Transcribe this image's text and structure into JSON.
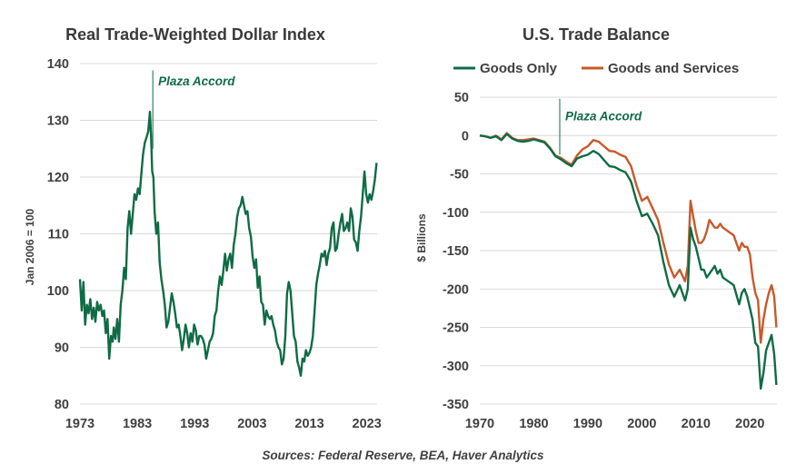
{
  "colors": {
    "green": "#0f6b45",
    "orange": "#c9582a",
    "grid": "#d9d9d9",
    "text": "#404040"
  },
  "source": "Sources: Federal Reserve, BEA, Haver Analytics",
  "chart_data": [
    {
      "type": "line",
      "title": "Real Trade-Weighted  Dollar  Index",
      "xlabel": "",
      "ylabel": "Jan 2006 = 100",
      "xlim": [
        1973,
        2024.8
      ],
      "ylim": [
        80,
        140
      ],
      "xticks": [
        1973,
        1983,
        1993,
        2003,
        2013,
        2023
      ],
      "yticks": [
        80,
        90,
        100,
        110,
        120,
        130,
        140
      ],
      "annotation": {
        "text": "Plaza Accord",
        "x": 1985.7
      },
      "series": [
        {
          "name": "Real Trade-Weighted Dollar Index",
          "color": "#0f6b45",
          "x": [
            1973.0,
            1973.3,
            1973.6,
            1973.9,
            1974.2,
            1974.5,
            1974.8,
            1975.1,
            1975.4,
            1975.7,
            1976.0,
            1976.3,
            1976.6,
            1976.9,
            1977.2,
            1977.5,
            1977.8,
            1978.1,
            1978.4,
            1978.7,
            1978.9,
            1979.2,
            1979.5,
            1979.8,
            1980.1,
            1980.4,
            1980.7,
            1981.0,
            1981.3,
            1981.6,
            1981.9,
            1982.2,
            1982.5,
            1982.8,
            1983.1,
            1983.4,
            1983.7,
            1984.0,
            1984.3,
            1984.6,
            1984.9,
            1985.2,
            1985.4,
            1985.6,
            1985.8,
            1986.0,
            1986.3,
            1986.6,
            1986.9,
            1987.2,
            1987.5,
            1987.8,
            1988.1,
            1988.4,
            1988.7,
            1989.0,
            1989.3,
            1989.6,
            1989.9,
            1990.2,
            1990.5,
            1990.8,
            1991.1,
            1991.4,
            1991.7,
            1992.0,
            1992.3,
            1992.6,
            1992.9,
            1993.2,
            1993.5,
            1993.8,
            1994.1,
            1994.4,
            1994.7,
            1995.0,
            1995.3,
            1995.6,
            1995.9,
            1996.2,
            1996.5,
            1996.8,
            1997.1,
            1997.4,
            1997.7,
            1998.0,
            1998.3,
            1998.6,
            1998.9,
            1999.2,
            1999.5,
            1999.8,
            2000.1,
            2000.4,
            2000.7,
            2001.0,
            2001.3,
            2001.6,
            2001.9,
            2002.2,
            2002.5,
            2002.8,
            2003.1,
            2003.4,
            2003.7,
            2004.0,
            2004.3,
            2004.6,
            2004.9,
            2005.2,
            2005.5,
            2005.8,
            2006.1,
            2006.4,
            2006.7,
            2007.0,
            2007.3,
            2007.6,
            2007.9,
            2008.2,
            2008.5,
            2008.8,
            2009.1,
            2009.4,
            2009.7,
            2010.0,
            2010.3,
            2010.6,
            2010.9,
            2011.2,
            2011.5,
            2011.8,
            2012.1,
            2012.4,
            2012.7,
            2013.0,
            2013.3,
            2013.6,
            2013.9,
            2014.2,
            2014.5,
            2014.8,
            2015.1,
            2015.4,
            2015.7,
            2016.0,
            2016.3,
            2016.6,
            2016.9,
            2017.2,
            2017.5,
            2017.8,
            2018.1,
            2018.4,
            2018.7,
            2019.0,
            2019.3,
            2019.6,
            2019.9,
            2020.2,
            2020.5,
            2020.8,
            2021.1,
            2021.4,
            2021.7,
            2022.0,
            2022.3,
            2022.6,
            2022.9,
            2023.2,
            2023.5,
            2023.8,
            2024.1,
            2024.4,
            2024.7
          ],
          "values": [
            102.0,
            96.5,
            101.5,
            94.0,
            97.5,
            96.0,
            98.5,
            95.0,
            97.0,
            94.5,
            98.0,
            96.5,
            97.5,
            95.5,
            96.5,
            92.5,
            95.0,
            88.0,
            92.0,
            91.0,
            93.5,
            91.5,
            95.0,
            91.0,
            97.5,
            100.0,
            104.0,
            102.0,
            111.0,
            114.0,
            110.0,
            113.5,
            117.0,
            116.0,
            118.0,
            117.0,
            120.5,
            124.0,
            126.0,
            127.0,
            128.0,
            131.5,
            127.0,
            121.0,
            120.0,
            114.0,
            110.0,
            112.0,
            105.0,
            102.0,
            100.0,
            97.5,
            93.5,
            94.5,
            97.0,
            99.5,
            98.0,
            96.0,
            93.5,
            94.0,
            92.0,
            89.5,
            91.5,
            94.0,
            92.5,
            90.0,
            92.5,
            91.0,
            94.0,
            93.0,
            90.5,
            92.0,
            92.0,
            91.5,
            90.5,
            88.0,
            89.5,
            91.0,
            91.5,
            92.5,
            95.5,
            96.5,
            100.0,
            102.5,
            101.0,
            103.5,
            106.5,
            103.5,
            105.5,
            106.5,
            104.0,
            108.0,
            110.0,
            113.0,
            114.5,
            115.0,
            116.5,
            115.0,
            113.5,
            114.0,
            111.0,
            109.5,
            106.0,
            104.0,
            105.5,
            100.5,
            102.5,
            98.0,
            97.5,
            94.0,
            96.5,
            95.5,
            95.0,
            95.5,
            94.0,
            93.0,
            91.0,
            90.0,
            89.5,
            87.0,
            88.0,
            92.0,
            99.5,
            101.5,
            100.0,
            96.0,
            92.0,
            91.0,
            87.5,
            86.5,
            85.0,
            88.0,
            87.5,
            89.5,
            88.5,
            89.0,
            90.0,
            92.0,
            96.5,
            101.0,
            103.0,
            104.5,
            106.5,
            106.0,
            107.0,
            104.5,
            106.5,
            107.5,
            111.0,
            112.0,
            107.0,
            107.5,
            110.0,
            112.0,
            113.5,
            110.5,
            111.0,
            112.0,
            110.5,
            114.5,
            113.0,
            109.0,
            108.5,
            107.0,
            110.5,
            113.0,
            117.0,
            121.0,
            117.0,
            115.5,
            117.0,
            116.0,
            117.5,
            119.5,
            122.5
          ]
        }
      ]
    },
    {
      "type": "line",
      "title": "U.S. Trade Balance",
      "xlabel": "",
      "ylabel": "$ Billions",
      "xlim": [
        1970,
        2025
      ],
      "ylim": [
        -350,
        50
      ],
      "xticks": [
        1970,
        1980,
        1990,
        2000,
        2010,
        2020
      ],
      "yticks": [
        50,
        0,
        -50,
        -100,
        -150,
        -200,
        -250,
        -300,
        -350
      ],
      "legend": [
        "Goods Only",
        "Goods and Services"
      ],
      "legend_position": "top",
      "annotation": {
        "text": "Plaza Accord",
        "x": 1984.8
      },
      "series": [
        {
          "name": "Goods Only",
          "color": "#0f6b45",
          "x": [
            1970,
            1971,
            1972,
            1973,
            1974,
            1975,
            1976,
            1977,
            1978,
            1979,
            1980,
            1981,
            1982,
            1983,
            1984,
            1985,
            1986,
            1987,
            1988,
            1989,
            1990,
            1991,
            1992,
            1993,
            1994,
            1995,
            1996,
            1997,
            1998,
            1999,
            2000,
            2001,
            2002,
            2003,
            2004,
            2005,
            2006,
            2007,
            2008,
            2008.5,
            2009,
            2009.5,
            2010,
            2010.5,
            2011,
            2011.5,
            2012,
            2012.5,
            2013,
            2013.5,
            2014,
            2014.5,
            2015,
            2016,
            2017,
            2018,
            2018.5,
            2019,
            2019.5,
            2020,
            2020.5,
            2021,
            2021.5,
            2022,
            2022.5,
            2023,
            2023.5,
            2024,
            2024.5,
            2024.9
          ],
          "values": [
            0,
            -1,
            -3,
            -1,
            -6,
            2,
            -4,
            -7,
            -8,
            -7,
            -5,
            -7,
            -9,
            -17,
            -27,
            -31,
            -36,
            -40,
            -30,
            -27,
            -25,
            -20,
            -24,
            -32,
            -40,
            -41,
            -45,
            -48,
            -60,
            -85,
            -105,
            -102,
            -115,
            -130,
            -165,
            -195,
            -210,
            -195,
            -215,
            -200,
            -120,
            -135,
            -145,
            -160,
            -175,
            -175,
            -185,
            -180,
            -175,
            -170,
            -180,
            -175,
            -185,
            -190,
            -195,
            -220,
            -205,
            -200,
            -210,
            -225,
            -240,
            -270,
            -275,
            -330,
            -310,
            -280,
            -270,
            -260,
            -285,
            -325
          ]
        },
        {
          "name": "Goods and Services",
          "color": "#c9582a",
          "x": [
            1970,
            1971,
            1972,
            1973,
            1974,
            1975,
            1976,
            1977,
            1978,
            1979,
            1980,
            1981,
            1982,
            1983,
            1984,
            1985,
            1986,
            1987,
            1988,
            1989,
            1990,
            1991,
            1992,
            1993,
            1994,
            1995,
            1996,
            1997,
            1998,
            1999,
            2000,
            2001,
            2002,
            2003,
            2004,
            2005,
            2006,
            2007,
            2008,
            2008.5,
            2009,
            2009.5,
            2010,
            2010.5,
            2011,
            2011.5,
            2012,
            2012.5,
            2013,
            2013.5,
            2014,
            2014.5,
            2015,
            2016,
            2017,
            2018,
            2018.5,
            2019,
            2019.5,
            2020,
            2020.5,
            2021,
            2021.5,
            2022,
            2022.5,
            2023,
            2023.5,
            2024,
            2024.5,
            2024.9
          ],
          "values": [
            0,
            -1,
            -3,
            0,
            -5,
            3,
            -3,
            -6,
            -6,
            -5,
            -4,
            -6,
            -8,
            -16,
            -26,
            -29,
            -34,
            -38,
            -26,
            -18,
            -14,
            -6,
            -8,
            -14,
            -20,
            -21,
            -25,
            -28,
            -40,
            -65,
            -85,
            -80,
            -95,
            -110,
            -140,
            -168,
            -185,
            -175,
            -190,
            -170,
            -85,
            -105,
            -125,
            -140,
            -140,
            -135,
            -125,
            -110,
            -115,
            -120,
            -120,
            -115,
            -120,
            -125,
            -130,
            -150,
            -140,
            -145,
            -145,
            -155,
            -185,
            -205,
            -215,
            -270,
            -240,
            -220,
            -205,
            -195,
            -210,
            -250
          ]
        }
      ]
    }
  ]
}
